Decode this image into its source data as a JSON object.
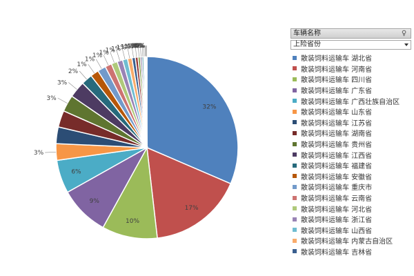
{
  "chart_data": {
    "type": "pie",
    "categories": [
      "散装饲料运输车 湖北省",
      "散装饲料运输车 河南省",
      "散装饲料运输车 四川省",
      "散装饲料运输车 广东省",
      "散装饲料运输车 广西壮族自治区",
      "散装饲料运输车 山东省",
      "散装饲料运输车 江苏省",
      "散装饲料运输车 湖南省",
      "散装饲料运输车 贵州省",
      "散装饲料运输车 江西省",
      "散装饲料运输车 福建省",
      "散装饲料运输车 安徽省",
      "散装饲料运输车 重庆市",
      "散装饲料运输车 云南省",
      "散装饲料运输车 河北省",
      "散装饲料运输车 浙江省",
      "散装饲料运输车 山西省",
      "散装饲料运输车 内蒙古自治区",
      "散装饲料运输车 吉林省",
      "",
      "",
      "",
      "",
      "",
      "",
      "",
      ""
    ],
    "values": [
      32,
      17,
      10,
      9,
      6,
      3,
      3,
      3,
      3,
      3,
      2,
      1.5,
      1.5,
      1.2,
      1.1,
      1,
      0.9,
      0.8,
      0.6,
      0.5,
      0.4,
      0.3,
      0.3,
      0.2,
      0.2,
      0.1,
      0.1
    ],
    "data_labels": [
      "32%",
      "17%",
      "10%",
      "9%",
      "6%",
      "3%",
      "",
      "",
      "3%",
      "3%",
      "2%",
      "1%",
      "1%",
      "1%",
      "1%",
      "1%",
      "1%",
      "1%",
      "1%",
      "1%",
      "0%",
      "0%",
      "0%",
      "0%",
      "0%",
      "0%",
      "0%"
    ],
    "colors": [
      "#4f81bd",
      "#c0504d",
      "#9bbb59",
      "#8064a2",
      "#4bacc6",
      "#f79646",
      "#2c4d75",
      "#772c2a",
      "#5f7530",
      "#4d3b62",
      "#276a7c",
      "#b65708",
      "#729aca",
      "#cd7371",
      "#afc97a",
      "#9983b5",
      "#6fbdd1",
      "#f9ab6b",
      "#3a5f8f",
      "#943634",
      "#77933c",
      "#604a7b",
      "#31859c",
      "#e46c0a",
      "#95b3d7",
      "#d99694",
      "#c3d69b"
    ],
    "legend_position": "right"
  },
  "field_header": {
    "label": "车辆名称"
  },
  "field_select": {
    "value": "上险省份"
  },
  "icons": {
    "filter": "filter-icon",
    "dropdown": "dropdown-icon"
  }
}
